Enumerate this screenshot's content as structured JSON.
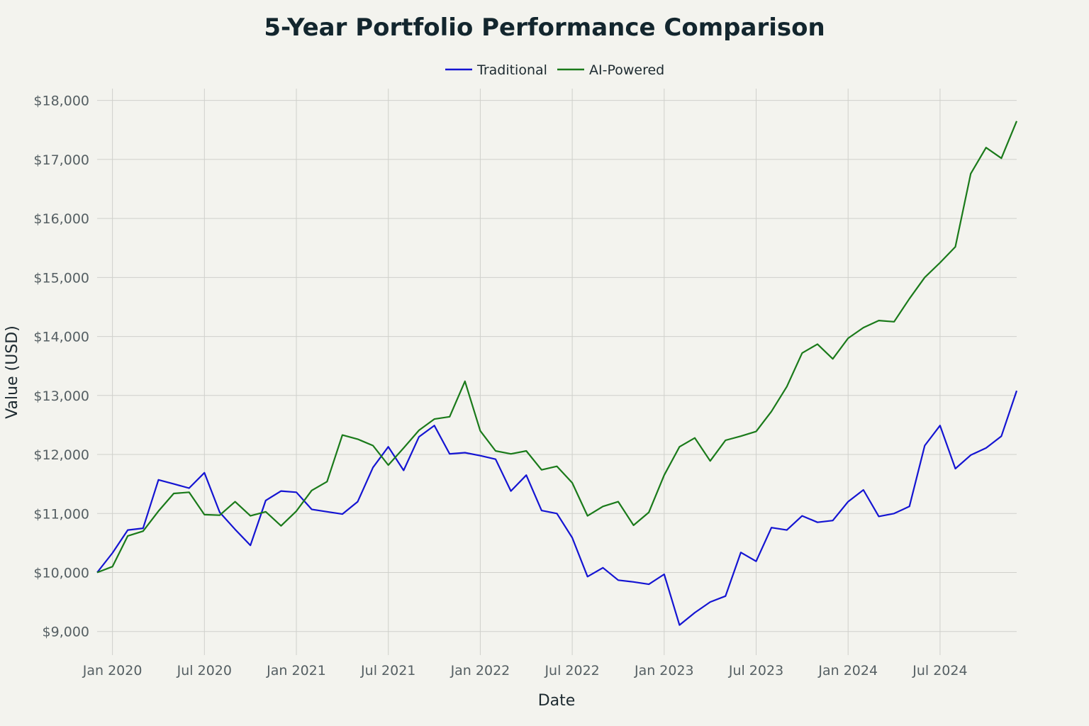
{
  "chart_data": {
    "type": "line",
    "title": "5-Year Portfolio Performance Comparison",
    "xlabel": "Date",
    "ylabel": "Value (USD)",
    "ylim": [
      8600,
      18200
    ],
    "yticks": [
      9000,
      10000,
      11000,
      12000,
      13000,
      14000,
      15000,
      16000,
      17000,
      18000
    ],
    "ytick_labels": [
      "$9,000",
      "$10,000",
      "$11,000",
      "$12,000",
      "$13,000",
      "$14,000",
      "$15,000",
      "$16,000",
      "$17,000",
      "$18,000"
    ],
    "x_start": "2019-12",
    "x_points": 61,
    "xticks": [
      1,
      7,
      13,
      19,
      25,
      31,
      37,
      43,
      49,
      55
    ],
    "xtick_labels": [
      "Jan 2020",
      "Jul 2020",
      "Jan 2021",
      "Jul 2021",
      "Jan 2022",
      "Jul 2022",
      "Jan 2023",
      "Jul 2023",
      "Jan 2024",
      "Jul 2024"
    ],
    "grid": true,
    "legend_position": "top-center",
    "series": [
      {
        "name": "Traditional",
        "color": "#1414d2",
        "values": [
          10000,
          10330,
          10720,
          10750,
          11570,
          11500,
          11430,
          11690,
          11020,
          10730,
          10460,
          11220,
          11380,
          11360,
          11070,
          11030,
          10990,
          11200,
          11780,
          12130,
          11730,
          12300,
          12490,
          12010,
          12030,
          11980,
          11920,
          11380,
          11650,
          11050,
          11000,
          10590,
          9930,
          10080,
          9870,
          9840,
          9800,
          9970,
          9110,
          9320,
          9500,
          9600,
          10340,
          10190,
          10760,
          10720,
          10960,
          10850,
          10880,
          11200,
          11400,
          10950,
          11000,
          11120,
          12150,
          12490,
          11760,
          11990,
          12110,
          12310,
          13080
        ]
      },
      {
        "name": "AI-Powered",
        "color": "#1a7a1a",
        "values": [
          10000,
          10100,
          10620,
          10700,
          11040,
          11340,
          11360,
          10980,
          10970,
          11200,
          10960,
          11030,
          10790,
          11040,
          11390,
          11540,
          12330,
          12260,
          12150,
          11820,
          12110,
          12410,
          12600,
          12640,
          13240,
          12400,
          12060,
          12010,
          12060,
          11740,
          11800,
          11520,
          10960,
          11120,
          11200,
          10800,
          11020,
          11650,
          12130,
          12280,
          11890,
          12240,
          12310,
          12390,
          12730,
          13150,
          13720,
          13870,
          13620,
          13970,
          14150,
          14270,
          14250,
          14640,
          15000,
          15250,
          15520,
          16760,
          17200,
          17020,
          17650
        ]
      }
    ]
  }
}
